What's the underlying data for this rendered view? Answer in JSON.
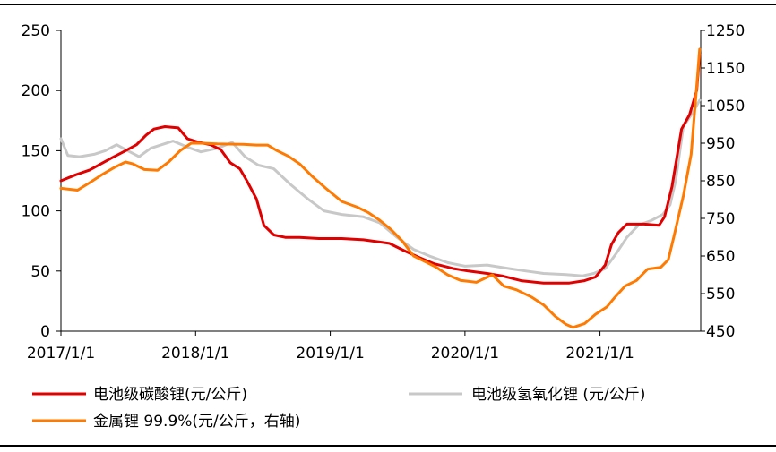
{
  "colors": {
    "lithium_carbonate": "#e00000",
    "lithium_hydroxide": "#c8c8c8",
    "lithium_metal": "#ff7a00",
    "axis": "#000000"
  },
  "chart_data": {
    "type": "line",
    "x_range": [
      "2017-01-01",
      "2021-10-01"
    ],
    "x_ticks": [
      "2017/1/1",
      "2018/1/1",
      "2019/1/1",
      "2020/1/1",
      "2021/1/1"
    ],
    "y_left": {
      "range": [
        0,
        250
      ],
      "ticks": [
        "0",
        "50",
        "100",
        "150",
        "200",
        "250"
      ]
    },
    "y_right": {
      "range": [
        450,
        1250
      ],
      "ticks": [
        "450",
        "550",
        "650",
        "750",
        "850",
        "950",
        "1050",
        "1150",
        "1250"
      ]
    },
    "grid": false,
    "legend_position": "bottom",
    "series": [
      {
        "name": "电池级碳酸锂(元/公斤)",
        "axis": "left",
        "points": [
          [
            "2017-01-01",
            125
          ],
          [
            "2017-02-10",
            130
          ],
          [
            "2017-03-20",
            134
          ],
          [
            "2017-04-25",
            140
          ],
          [
            "2017-05-25",
            145
          ],
          [
            "2017-06-25",
            150
          ],
          [
            "2017-07-25",
            155
          ],
          [
            "2017-08-20",
            163
          ],
          [
            "2017-09-10",
            168
          ],
          [
            "2017-10-10",
            170
          ],
          [
            "2017-11-15",
            169
          ],
          [
            "2017-12-10",
            160
          ],
          [
            "2018-01-10",
            157
          ],
          [
            "2018-02-10",
            155
          ],
          [
            "2018-03-10",
            151
          ],
          [
            "2018-04-05",
            140
          ],
          [
            "2018-05-01",
            135
          ],
          [
            "2018-05-20",
            125
          ],
          [
            "2018-06-15",
            110
          ],
          [
            "2018-07-05",
            88
          ],
          [
            "2018-08-01",
            80
          ],
          [
            "2018-09-01",
            78
          ],
          [
            "2018-10-10",
            78
          ],
          [
            "2018-12-01",
            77
          ],
          [
            "2019-02-01",
            77
          ],
          [
            "2019-04-01",
            76
          ],
          [
            "2019-06-10",
            73
          ],
          [
            "2019-07-20",
            67
          ],
          [
            "2019-09-01",
            61
          ],
          [
            "2019-10-10",
            56
          ],
          [
            "2019-12-01",
            52
          ],
          [
            "2020-01-10",
            50
          ],
          [
            "2020-03-01",
            48
          ],
          [
            "2020-04-10",
            46
          ],
          [
            "2020-06-01",
            42
          ],
          [
            "2020-08-01",
            40
          ],
          [
            "2020-10-10",
            40
          ],
          [
            "2020-11-20",
            42
          ],
          [
            "2020-12-20",
            45
          ],
          [
            "2021-01-15",
            55
          ],
          [
            "2021-02-01",
            72
          ],
          [
            "2021-02-20",
            82
          ],
          [
            "2021-03-15",
            89
          ],
          [
            "2021-05-01",
            89
          ],
          [
            "2021-06-10",
            88
          ],
          [
            "2021-06-25",
            95
          ],
          [
            "2021-07-15",
            120
          ],
          [
            "2021-08-10",
            168
          ],
          [
            "2021-09-01",
            180
          ],
          [
            "2021-09-20",
            200
          ],
          [
            "2021-09-28",
            230
          ]
        ]
      },
      {
        "name": "电池级氢氧化锂 (元/公斤)",
        "axis": "left",
        "points": [
          [
            "2017-01-01",
            160
          ],
          [
            "2017-01-20",
            146
          ],
          [
            "2017-02-20",
            145
          ],
          [
            "2017-04-01",
            147
          ],
          [
            "2017-05-01",
            150
          ],
          [
            "2017-06-01",
            155
          ],
          [
            "2017-07-01",
            150
          ],
          [
            "2017-08-01",
            145
          ],
          [
            "2017-09-01",
            152
          ],
          [
            "2017-10-01",
            155
          ],
          [
            "2017-11-01",
            158
          ],
          [
            "2017-12-10",
            153
          ],
          [
            "2018-01-15",
            149
          ],
          [
            "2018-03-01",
            152
          ],
          [
            "2018-04-10",
            157
          ],
          [
            "2018-05-15",
            145
          ],
          [
            "2018-06-20",
            138
          ],
          [
            "2018-08-01",
            135
          ],
          [
            "2018-09-15",
            122
          ],
          [
            "2018-11-01",
            110
          ],
          [
            "2018-12-15",
            100
          ],
          [
            "2019-02-01",
            97
          ],
          [
            "2019-04-01",
            95
          ],
          [
            "2019-05-15",
            90
          ],
          [
            "2019-07-01",
            78
          ],
          [
            "2019-08-15",
            68
          ],
          [
            "2019-10-01",
            62
          ],
          [
            "2019-11-15",
            57
          ],
          [
            "2020-01-01",
            54
          ],
          [
            "2020-03-01",
            55
          ],
          [
            "2020-05-01",
            52
          ],
          [
            "2020-06-15",
            50
          ],
          [
            "2020-08-01",
            48
          ],
          [
            "2020-10-01",
            47
          ],
          [
            "2020-11-15",
            46
          ],
          [
            "2020-12-15",
            48
          ],
          [
            "2021-01-15",
            52
          ],
          [
            "2021-02-15",
            65
          ],
          [
            "2021-03-15",
            78
          ],
          [
            "2021-04-15",
            88
          ],
          [
            "2021-05-20",
            92
          ],
          [
            "2021-06-20",
            97
          ],
          [
            "2021-07-10",
            105
          ],
          [
            "2021-07-25",
            125
          ],
          [
            "2021-08-15",
            170
          ],
          [
            "2021-09-10",
            182
          ],
          [
            "2021-09-28",
            192
          ]
        ]
      },
      {
        "name": "金属锂 99.9%(元/公斤，右轴)",
        "axis": "right",
        "points": [
          [
            "2017-01-01",
            830
          ],
          [
            "2017-02-15",
            825
          ],
          [
            "2017-03-20",
            845
          ],
          [
            "2017-04-20",
            865
          ],
          [
            "2017-05-25",
            885
          ],
          [
            "2017-06-25",
            900
          ],
          [
            "2017-07-15",
            895
          ],
          [
            "2017-08-15",
            880
          ],
          [
            "2017-09-20",
            878
          ],
          [
            "2017-10-20",
            900
          ],
          [
            "2017-11-20",
            930
          ],
          [
            "2017-12-20",
            950
          ],
          [
            "2018-01-15",
            950
          ],
          [
            "2018-03-01",
            948
          ],
          [
            "2018-05-10",
            947
          ],
          [
            "2018-06-15",
            945
          ],
          [
            "2018-07-15",
            945
          ],
          [
            "2018-08-10",
            930
          ],
          [
            "2018-09-10",
            915
          ],
          [
            "2018-10-10",
            895
          ],
          [
            "2018-11-15",
            860
          ],
          [
            "2018-12-20",
            830
          ],
          [
            "2019-02-01",
            795
          ],
          [
            "2019-03-15",
            780
          ],
          [
            "2019-04-15",
            765
          ],
          [
            "2019-05-15",
            745
          ],
          [
            "2019-06-15",
            720
          ],
          [
            "2019-07-15",
            690
          ],
          [
            "2019-08-15",
            650
          ],
          [
            "2019-09-15",
            635
          ],
          [
            "2019-10-15",
            620
          ],
          [
            "2019-11-15",
            600
          ],
          [
            "2019-12-20",
            585
          ],
          [
            "2020-02-01",
            580
          ],
          [
            "2020-03-15",
            600
          ],
          [
            "2020-04-15",
            570
          ],
          [
            "2020-05-20",
            560
          ],
          [
            "2020-07-01",
            540
          ],
          [
            "2020-08-01",
            520
          ],
          [
            "2020-09-01",
            490
          ],
          [
            "2020-10-01",
            468
          ],
          [
            "2020-10-20",
            460
          ],
          [
            "2020-11-20",
            470
          ],
          [
            "2020-12-20",
            495
          ],
          [
            "2021-01-20",
            515
          ],
          [
            "2021-02-10",
            540
          ],
          [
            "2021-03-10",
            570
          ],
          [
            "2021-04-10",
            585
          ],
          [
            "2021-04-25",
            600
          ],
          [
            "2021-05-10",
            615
          ],
          [
            "2021-06-15",
            620
          ],
          [
            "2021-07-05",
            640
          ],
          [
            "2021-07-20",
            700
          ],
          [
            "2021-08-15",
            810
          ],
          [
            "2021-09-05",
            920
          ],
          [
            "2021-09-20",
            1100
          ],
          [
            "2021-09-28",
            1200
          ]
        ]
      }
    ]
  }
}
